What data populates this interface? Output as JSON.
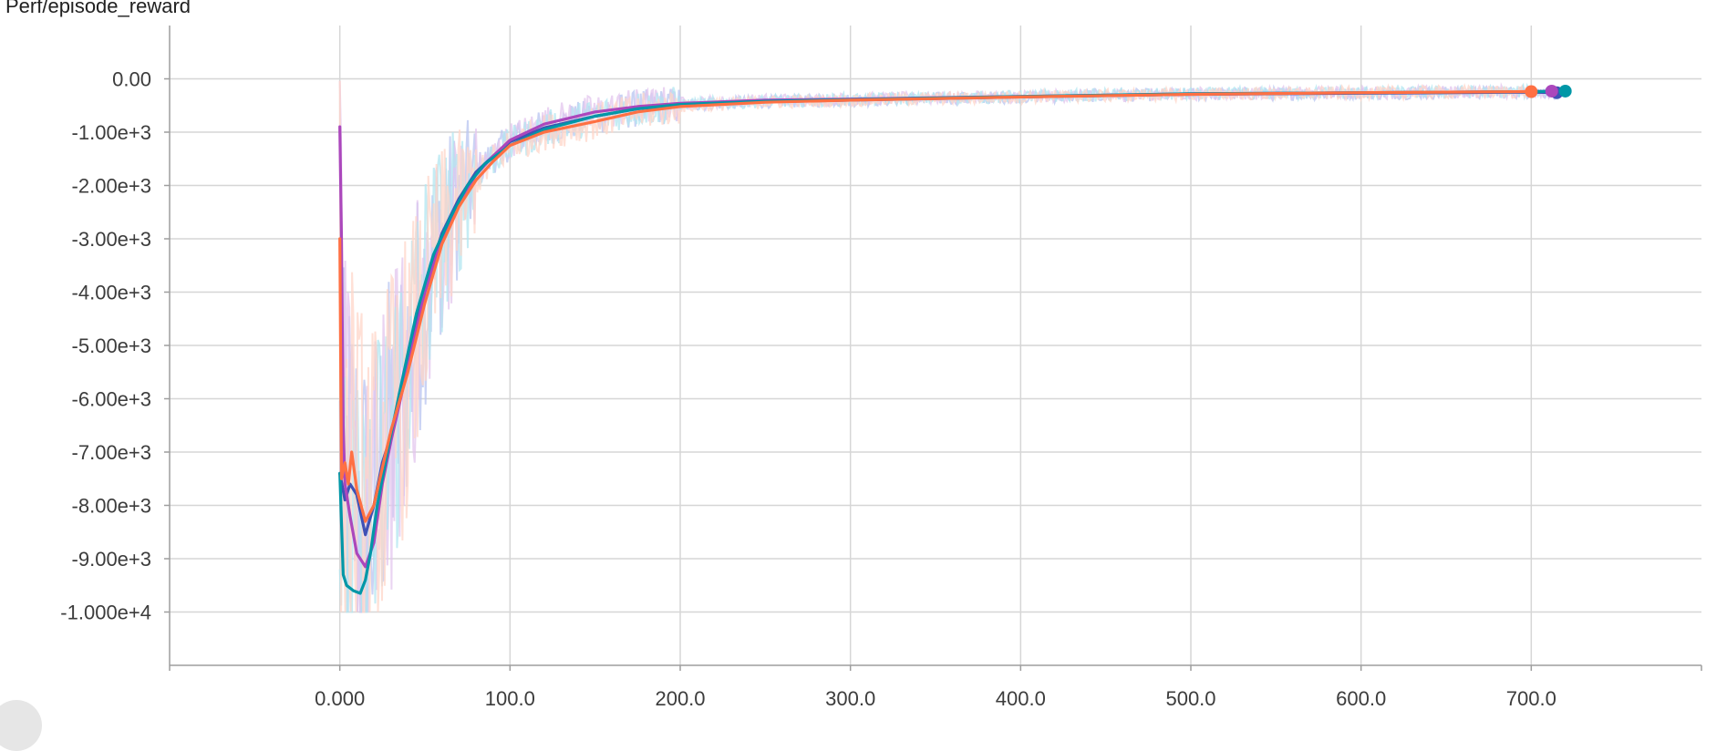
{
  "chart_data": {
    "type": "line",
    "title": "Perf/episode_reward",
    "xlabel": "",
    "ylabel": "",
    "xlim": [
      -100,
      800
    ],
    "ylim": [
      -11000,
      1000
    ],
    "grid": true,
    "legend": "none",
    "x_ticks": [
      {
        "value": 0,
        "label": "0.000"
      },
      {
        "value": 100,
        "label": "100.0"
      },
      {
        "value": 200,
        "label": "200.0"
      },
      {
        "value": 300,
        "label": "300.0"
      },
      {
        "value": 400,
        "label": "400.0"
      },
      {
        "value": 500,
        "label": "500.0"
      },
      {
        "value": 600,
        "label": "600.0"
      },
      {
        "value": 700,
        "label": "700.0"
      }
    ],
    "y_ticks": [
      {
        "value": 0,
        "label": "0.00"
      },
      {
        "value": -1000,
        "label": "-1.00e+3"
      },
      {
        "value": -2000,
        "label": "-2.00e+3"
      },
      {
        "value": -3000,
        "label": "-3.00e+3"
      },
      {
        "value": -4000,
        "label": "-4.00e+3"
      },
      {
        "value": -5000,
        "label": "-5.00e+3"
      },
      {
        "value": -6000,
        "label": "-6.00e+3"
      },
      {
        "value": -7000,
        "label": "-7.00e+3"
      },
      {
        "value": -8000,
        "label": "-8.00e+3"
      },
      {
        "value": -9000,
        "label": "-9.00e+3"
      },
      {
        "value": -10000,
        "label": "-1.000e+4"
      }
    ],
    "series": [
      {
        "color": "#3F51B5",
        "raw_color": "#B8C4F0",
        "x": [
          0,
          3,
          6,
          10,
          15,
          20,
          25,
          30,
          40,
          50,
          60,
          70,
          80,
          90,
          100,
          120,
          150,
          175,
          200,
          250,
          300,
          400,
          500,
          600,
          700,
          715
        ],
        "y": [
          -7400,
          -7900,
          -7600,
          -7800,
          -8550,
          -8000,
          -7200,
          -6700,
          -5300,
          -3900,
          -2900,
          -2250,
          -1750,
          -1450,
          -1180,
          -920,
          -700,
          -560,
          -490,
          -430,
          -400,
          -340,
          -290,
          -270,
          -250,
          -260
        ]
      },
      {
        "color": "#AB47BC",
        "raw_color": "#E3C6EE",
        "x": [
          0,
          1,
          2,
          3,
          6,
          10,
          15,
          20,
          25,
          30,
          40,
          50,
          60,
          70,
          80,
          90,
          100,
          120,
          150,
          175,
          200,
          250,
          300,
          400,
          500,
          600,
          700,
          712
        ],
        "y": [
          -900,
          -3000,
          -6500,
          -7600,
          -8200,
          -8900,
          -9150,
          -8700,
          -7600,
          -6800,
          -5400,
          -4000,
          -3000,
          -2300,
          -1800,
          -1450,
          -1150,
          -850,
          -620,
          -520,
          -460,
          -400,
          -380,
          -330,
          -280,
          -260,
          -240,
          -230
        ]
      },
      {
        "color": "#0097A7",
        "raw_color": "#B2E6F0",
        "x": [
          0,
          2,
          4,
          8,
          12,
          15,
          18,
          22,
          28,
          35,
          45,
          55,
          65,
          75,
          85,
          100,
          120,
          150,
          175,
          200,
          250,
          300,
          400,
          500,
          600,
          700,
          720
        ],
        "y": [
          -7400,
          -9300,
          -9500,
          -9600,
          -9650,
          -9400,
          -8900,
          -8000,
          -7000,
          -5900,
          -4400,
          -3300,
          -2600,
          -2000,
          -1600,
          -1250,
          -950,
          -700,
          -560,
          -480,
          -420,
          -390,
          -330,
          -280,
          -260,
          -240,
          -230
        ]
      },
      {
        "color": "#FF7043",
        "raw_color": "#FFD5C8",
        "x": [
          0,
          1,
          3,
          5,
          7,
          10,
          15,
          20,
          25,
          30,
          40,
          50,
          60,
          70,
          80,
          90,
          100,
          120,
          150,
          175,
          200,
          250,
          300,
          400,
          500,
          600,
          700
        ],
        "y": [
          -3000,
          -7500,
          -7200,
          -7600,
          -7000,
          -7700,
          -8300,
          -8000,
          -7300,
          -6600,
          -5500,
          -4200,
          -3100,
          -2400,
          -1900,
          -1550,
          -1250,
          -1000,
          -800,
          -620,
          -520,
          -440,
          -400,
          -340,
          -290,
          -260,
          -240
        ]
      }
    ]
  }
}
